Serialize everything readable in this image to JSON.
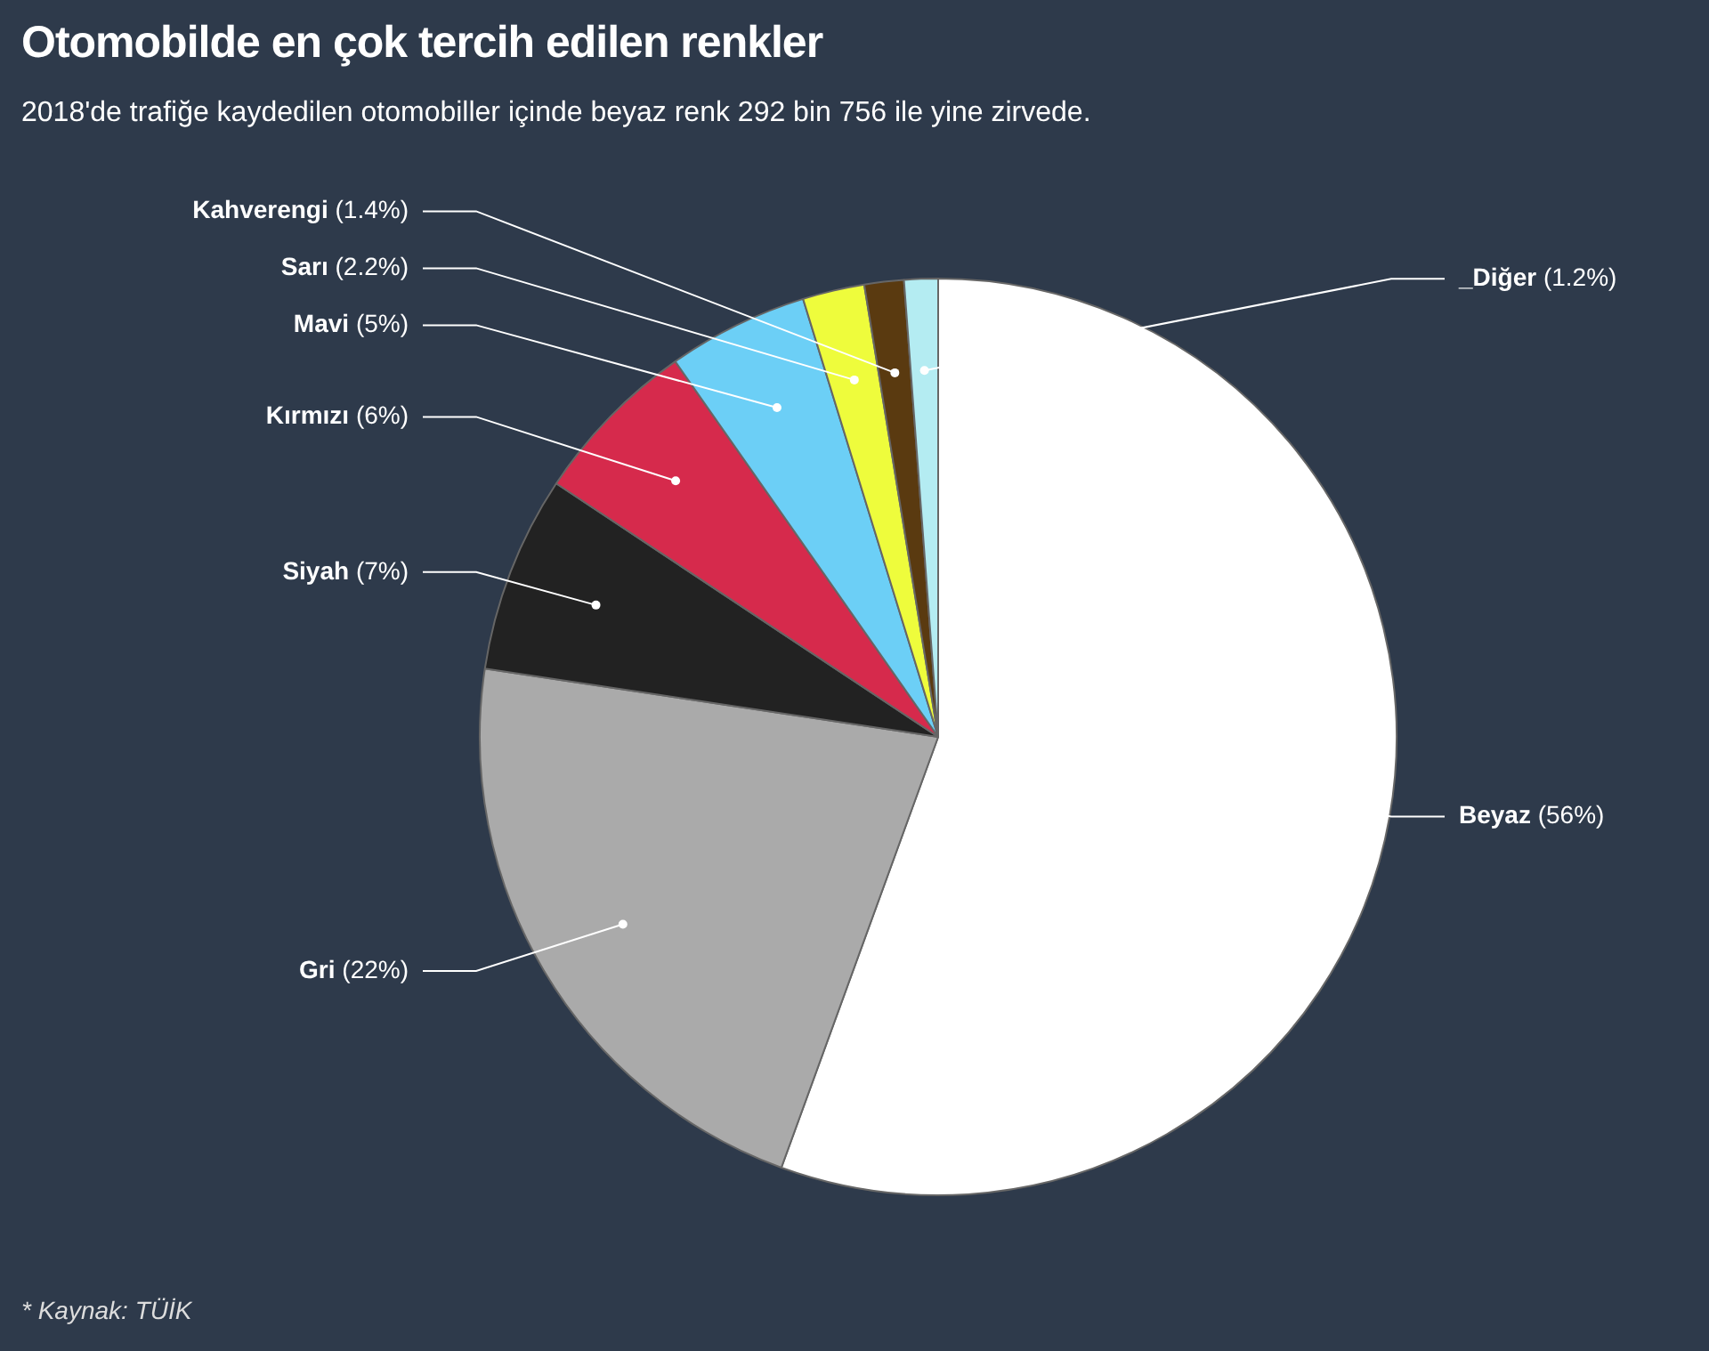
{
  "chart_data": {
    "type": "pie",
    "title": "Otomobilde en çok tercih edilen renkler",
    "subtitle": "2018'de trafiğe kaydedilen otomobiller içinde beyaz renk 292 bin 756 ile yine zirvede.",
    "categories": [
      "Beyaz",
      "Gri",
      "Siyah",
      "Kırmızı",
      "Mavi",
      "Sarı",
      "Kahverengi",
      "_Diğer"
    ],
    "values": [
      56,
      22,
      7,
      6,
      5,
      2.2,
      1.4,
      1.2
    ],
    "value_labels": [
      "(56%)",
      "(22%)",
      "(7%)",
      "(6%)",
      "(5%)",
      "(2.2%)",
      "(1.4%)",
      "(1.2%)"
    ],
    "colors": [
      "#ffffff",
      "#aaaaaa",
      "#222222",
      "#d62a4c",
      "#6ccff6",
      "#eefc3c",
      "#5a3a10",
      "#b4ecf2"
    ],
    "legend": false,
    "annotations": [
      "* Kaynak: TÜİK"
    ]
  }
}
